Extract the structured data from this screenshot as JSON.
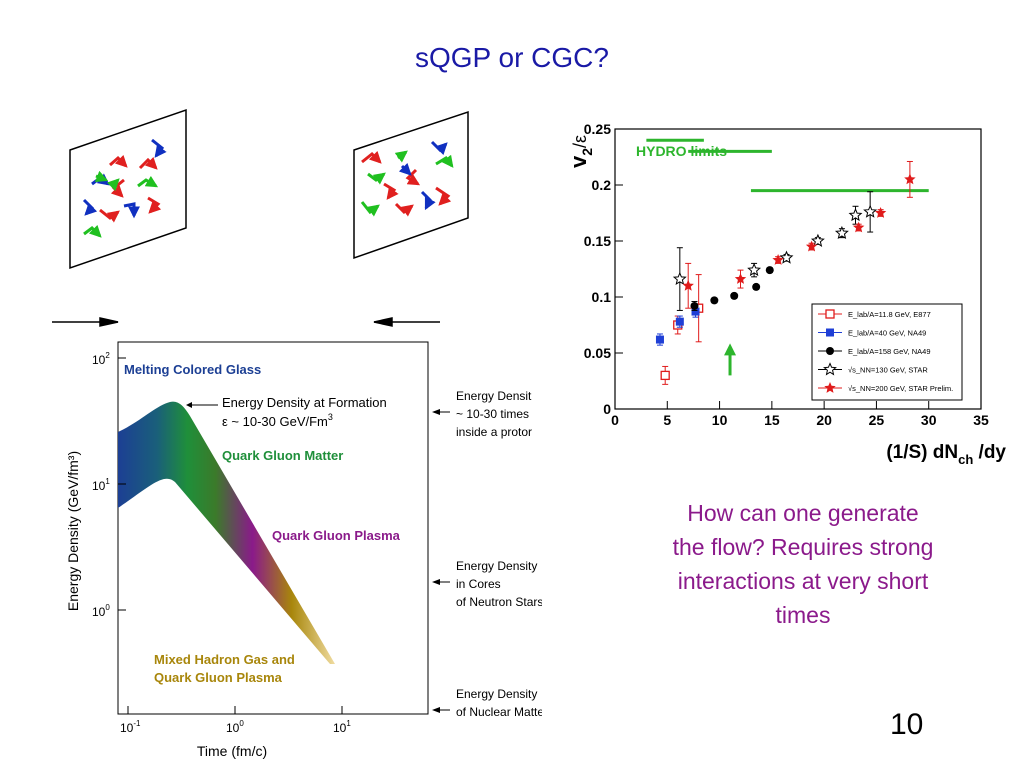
{
  "slide": {
    "title": "sQGP or CGC?",
    "question": "How can one generate the flow? Requires strong interactions at very short times",
    "page_number": "10"
  },
  "colors": {
    "title": "#1a1aa6",
    "question": "#8b1a8b",
    "hydro_green": "#2db52d",
    "cgc_blue": "#1c3f94",
    "qgp_green": "#1f8f3a",
    "plasma_purple": "#8a1a8a",
    "hadron_gold": "#a8860b"
  },
  "chart_data": [
    {
      "type": "scatter",
      "ylabel_main": "v",
      "ylabel_sub": "2",
      "ylabel_rest": "/ε",
      "xlabel_main": "(1/S) dN",
      "xlabel_sub": "ch",
      "xlabel_rest": " /dy",
      "xlim": [
        0,
        35
      ],
      "ylim": [
        0,
        0.25
      ],
      "x_ticks": [
        "0",
        "5",
        "10",
        "15",
        "20",
        "25",
        "30",
        "35"
      ],
      "y_ticks": [
        "0",
        "0.05",
        "0.1",
        "0.15",
        "0.2",
        "0.25"
      ],
      "annotation": "HYDRO  limits",
      "hydro_limits": [
        {
          "x": [
            3,
            8.5
          ],
          "y": 0.24
        },
        {
          "x": [
            7,
            15
          ],
          "y": 0.23
        },
        {
          "x": [
            13,
            30
          ],
          "y": 0.195
        }
      ],
      "arrow": {
        "x": 11,
        "y_from": 0.03,
        "y_to": 0.055
      },
      "series": [
        {
          "name": "E_lab/A=11.8 GeV, E877",
          "marker": "open-square",
          "color": "#e01b1b",
          "points": [
            [
              4.8,
              0.03
            ],
            [
              6.0,
              0.075
            ],
            [
              8.0,
              0.09
            ]
          ],
          "err": [
            0.008,
            0.008,
            0.03
          ]
        },
        {
          "name": "E_lab/A=40 GeV, NA49",
          "marker": "square",
          "color": "#1f3fd6",
          "points": [
            [
              4.3,
              0.062
            ],
            [
              6.2,
              0.078
            ],
            [
              7.7,
              0.087
            ]
          ],
          "err": [
            0.005,
            0.005,
            0.005
          ]
        },
        {
          "name": "E_lab/A=158 GeV, NA49",
          "marker": "circle",
          "color": "#000000",
          "points": [
            [
              7.6,
              0.092
            ],
            [
              9.5,
              0.097
            ],
            [
              11.4,
              0.101
            ],
            [
              13.5,
              0.109
            ],
            [
              14.8,
              0.124
            ]
          ],
          "err": [
            0.004,
            0.002,
            0.002,
            0.002,
            0.002
          ]
        },
        {
          "name": "√s_NN=130 GeV, STAR",
          "marker": "open-star",
          "color": "#000000",
          "points": [
            [
              6.2,
              0.116
            ],
            [
              13.3,
              0.124
            ],
            [
              16.4,
              0.135
            ],
            [
              19.4,
              0.15
            ],
            [
              21.7,
              0.157
            ],
            [
              23.0,
              0.173
            ],
            [
              24.4,
              0.176
            ]
          ],
          "err": [
            0.028,
            0.006,
            0.003,
            0.003,
            0.004,
            0.008,
            0.018
          ]
        },
        {
          "name": "√s_NN=200 GeV, STAR Prelim.",
          "marker": "star",
          "color": "#e01b1b",
          "points": [
            [
              7.0,
              0.11
            ],
            [
              12.0,
              0.116
            ],
            [
              15.6,
              0.133
            ],
            [
              18.8,
              0.145
            ],
            [
              23.3,
              0.162
            ],
            [
              25.4,
              0.175
            ],
            [
              28.2,
              0.205
            ]
          ],
          "err": [
            0.02,
            0.008,
            0.003,
            0.003,
            0.003,
            0.003,
            0.016
          ]
        }
      ]
    },
    {
      "type": "area",
      "ylabel": "Energy Density (GeV/fm³)",
      "xlabel": "Time (fm/c)",
      "x_scale": "log",
      "y_scale": "log",
      "x_ticks": [
        {
          "base": "10",
          "exp": "-1"
        },
        {
          "base": "10",
          "exp": "0"
        },
        {
          "base": "10",
          "exp": "1"
        }
      ],
      "y_ticks": [
        {
          "base": "10",
          "exp": "2"
        },
        {
          "base": "10",
          "exp": "1"
        },
        {
          "base": "10",
          "exp": "0"
        }
      ],
      "regions": [
        {
          "label": "Melting Colored Glass",
          "color": "#1c3f94"
        },
        {
          "label": "Quark Gluon Matter",
          "color": "#1f8f3a"
        },
        {
          "label": "Quark Gluon Plasma",
          "color": "#8a1a8a"
        },
        {
          "label": "Mixed Hadron Gas and",
          "color": "#a8860b"
        },
        {
          "label": "Quark Gluon Plasma",
          "color": "#a8860b"
        }
      ],
      "peak_annotation": [
        "Energy Density at Formation",
        "ε ~ 10-30 GeV/Fm",
        "3"
      ],
      "reference_marks": [
        {
          "lines": [
            "Energy Densit",
            "~ 10-30 times",
            "inside a protor"
          ]
        },
        {
          "lines": [
            "Energy Density",
            "in Cores",
            "of Neutron Stars"
          ]
        },
        {
          "lines": [
            "Energy Density",
            "of Nuclear Matter"
          ]
        }
      ]
    }
  ]
}
